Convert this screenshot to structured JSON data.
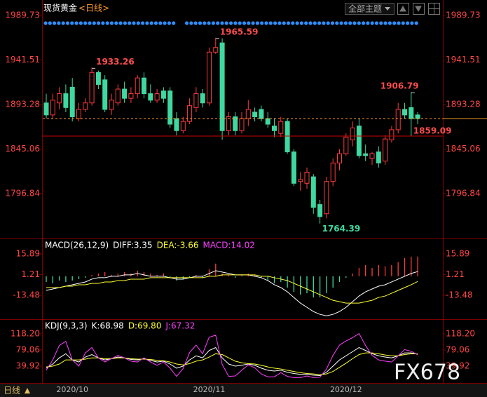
{
  "header": {
    "title": "现货黄金",
    "period": "<日线>",
    "theme_button": "全部主题",
    "bottom_period": "日线",
    "watermark": "FX678"
  },
  "chart_data": [
    {
      "type": "candlestick",
      "categories": [
        null,
        null,
        null,
        null,
        "2020/10",
        null,
        null,
        null,
        null,
        null,
        null,
        null,
        null,
        null,
        null,
        null,
        null,
        null,
        null,
        null,
        null,
        null,
        null,
        null,
        null,
        "2020/11",
        null,
        null,
        null,
        null,
        null,
        null,
        null,
        null,
        null,
        null,
        null,
        null,
        null,
        null,
        null,
        null,
        null,
        null,
        null,
        null,
        "2020/12",
        null,
        null,
        null,
        null,
        null,
        null,
        null,
        null,
        null,
        null,
        null
      ],
      "open": [
        1895,
        1882,
        1895,
        1905,
        1912,
        1878,
        1888,
        1895,
        1928,
        1920,
        1888,
        1895,
        1910,
        1900,
        1905,
        1922,
        1905,
        1898,
        1908,
        1908,
        1878,
        1865,
        1875,
        1890,
        1905,
        1895,
        1950,
        1960,
        1865,
        1880,
        1865,
        1878,
        1885,
        1888,
        1878,
        1870,
        1862,
        1875,
        1842,
        1810,
        1808,
        1815,
        1785,
        1775,
        1810,
        1830,
        1840,
        1855,
        1870,
        1840,
        1835,
        1842,
        1832,
        1855,
        1866,
        1888,
        1890,
        1882
      ],
      "high": [
        1905,
        1905,
        1912,
        1915,
        1922,
        1895,
        1900,
        1933.26,
        1930,
        1925,
        1905,
        1915,
        1918,
        1912,
        1925,
        1928,
        1915,
        1910,
        1912,
        1912,
        1885,
        1880,
        1900,
        1912,
        1910,
        1955,
        1965.59,
        1965,
        1885,
        1885,
        1885,
        1898,
        1890,
        1892,
        1885,
        1878,
        1880,
        1878,
        1845,
        1820,
        1825,
        1818,
        1790,
        1815,
        1835,
        1845,
        1862,
        1875,
        1878,
        1850,
        1842,
        1848,
        1860,
        1870,
        1895,
        1895,
        1906.79,
        1885
      ],
      "low": [
        1878,
        1878,
        1888,
        1885,
        1875,
        1875,
        1885,
        1892,
        1910,
        1885,
        1882,
        1892,
        1895,
        1895,
        1900,
        1900,
        1895,
        1895,
        1895,
        1868,
        1860,
        1862,
        1872,
        1885,
        1890,
        1892,
        1948,
        1855,
        1860,
        1860,
        1862,
        1870,
        1875,
        1875,
        1868,
        1858,
        1858,
        1840,
        1805,
        1800,
        1802,
        1775,
        1764.39,
        1770,
        1805,
        1822,
        1838,
        1848,
        1835,
        1832,
        1828,
        1825,
        1828,
        1852,
        1862,
        1878,
        1859.09,
        1872
      ],
      "close": [
        1882,
        1898,
        1905,
        1890,
        1880,
        1888,
        1895,
        1928,
        1915,
        1888,
        1898,
        1910,
        1900,
        1905,
        1922,
        1905,
        1898,
        1905,
        1900,
        1872,
        1865,
        1875,
        1892,
        1905,
        1895,
        1950,
        1955,
        1865,
        1880,
        1865,
        1878,
        1888,
        1880,
        1878,
        1872,
        1865,
        1875,
        1842,
        1808,
        1812,
        1820,
        1782,
        1772,
        1810,
        1830,
        1840,
        1858,
        1868,
        1838,
        1838,
        1840,
        1830,
        1856,
        1866,
        1888,
        1882,
        1878,
        1878
      ],
      "up_color": "#ff3b3b",
      "down_color": "#3fd8a0",
      "last_price_color": "#ff9a2e",
      "ylim": [
        1749.76,
        2002.64
      ],
      "yticks": [
        1989.73,
        1941.51,
        1893.28,
        1845.06,
        1796.84
      ],
      "high_labels": [
        {
          "value": 1965.59,
          "color": "#ff4d4d"
        },
        {
          "value": 1933.26,
          "color": "#ff4d4d"
        },
        {
          "value": 1906.79,
          "color": "#ff4d4d"
        }
      ],
      "low_labels": [
        {
          "value": 1764.39,
          "color": "#3fd8a0"
        },
        {
          "value": 1859.09,
          "color": "#ff4d4d",
          "guide": true
        }
      ]
    },
    {
      "type": "indicator",
      "title": "MACD(26,12,9)",
      "ylim": [
        -28.9,
        25.34
      ],
      "yticks": [
        15.89,
        1.21,
        -13.48
      ],
      "series": [
        {
          "name": "DIFF:3.35",
          "type": "line",
          "color": "#ffffff",
          "values": [
            -10,
            -9,
            -8,
            -7,
            -6,
            -5,
            -4,
            -2,
            -1,
            -1,
            0,
            0,
            1,
            1,
            2,
            1,
            0,
            0,
            0,
            -1,
            -2,
            -2,
            -1,
            0,
            0,
            2,
            4,
            3,
            2,
            1,
            1,
            1,
            0,
            -1,
            -3,
            -6,
            -8,
            -11,
            -15,
            -19,
            -22,
            -25,
            -27,
            -28,
            -27,
            -25,
            -22,
            -18,
            -14,
            -11,
            -9,
            -7,
            -6,
            -4,
            -2,
            0,
            2,
            3.35
          ]
        },
        {
          "name": "DEA:-3.66",
          "type": "line",
          "color": "#ffff33",
          "values": [
            -8,
            -8,
            -8,
            -7,
            -7,
            -6,
            -6,
            -5,
            -5,
            -4,
            -4,
            -3,
            -3,
            -2,
            -2,
            -2,
            -1,
            -1,
            -1,
            -1,
            -1,
            -1,
            -1,
            -1,
            -1,
            0,
            0,
            1,
            1,
            1,
            1,
            1,
            1,
            0,
            0,
            -1,
            -2,
            -3,
            -5,
            -7,
            -9,
            -11,
            -13,
            -15,
            -17,
            -18,
            -19,
            -19,
            -19,
            -18,
            -17,
            -15,
            -14,
            -12,
            -10,
            -8,
            -6,
            -3.66
          ]
        },
        {
          "name": "MACD:14.02",
          "type": "bar",
          "color": "#ff40ff",
          "up_color": "#ff3b3b",
          "down_color": "#3fd8a0",
          "values": [
            -4,
            -5,
            -3,
            -4,
            -3,
            -2,
            -1,
            1,
            2,
            3,
            1,
            2,
            3,
            2,
            4,
            3,
            2,
            1,
            2,
            -1,
            -3,
            -2,
            -1,
            1,
            -1,
            5,
            9,
            2,
            1,
            -1,
            1,
            2,
            1,
            -1,
            -3,
            -5,
            -4,
            -8,
            -11,
            -13,
            -12,
            -15,
            -15,
            -12,
            -8,
            -4,
            -1,
            2,
            6,
            8,
            6,
            8,
            7,
            8,
            10,
            13,
            14,
            14.02
          ]
        }
      ]
    },
    {
      "type": "indicator",
      "title": "KDJ(9,3,3)",
      "ylim": [
        0.78,
        148.83
      ],
      "yticks": [
        {
          "value": 118.2,
          "label": "118.20"
        },
        79.06,
        39.92
      ],
      "series": [
        {
          "name": "K:68.98",
          "type": "line",
          "color": "#ffffff",
          "values": [
            35,
            45,
            60,
            70,
            55,
            50,
            62,
            68,
            60,
            55,
            58,
            62,
            60,
            56,
            55,
            58,
            54,
            50,
            52,
            45,
            35,
            40,
            55,
            65,
            60,
            78,
            85,
            60,
            45,
            40,
            42,
            45,
            42,
            35,
            30,
            28,
            30,
            25,
            22,
            20,
            20,
            18,
            17,
            25,
            40,
            55,
            65,
            75,
            85,
            78,
            70,
            65,
            62,
            60,
            65,
            72,
            72,
            68.98
          ]
        },
        {
          "name": "D:69.80",
          "type": "line",
          "color": "#ffff33",
          "values": [
            38,
            40,
            45,
            55,
            55,
            55,
            57,
            60,
            60,
            58,
            58,
            60,
            60,
            58,
            57,
            57,
            56,
            54,
            53,
            50,
            45,
            43,
            46,
            52,
            55,
            62,
            70,
            68,
            60,
            52,
            48,
            46,
            45,
            42,
            38,
            35,
            33,
            30,
            27,
            24,
            22,
            21,
            19,
            21,
            27,
            37,
            47,
            58,
            68,
            72,
            72,
            70,
            67,
            65,
            65,
            68,
            70,
            69.8
          ]
        },
        {
          "name": "J:67.32",
          "type": "line",
          "color": "#ff40ff",
          "values": [
            30,
            55,
            90,
            100,
            55,
            40,
            72,
            85,
            60,
            50,
            58,
            66,
            60,
            52,
            50,
            60,
            50,
            42,
            50,
            35,
            15,
            34,
            73,
            91,
            70,
            110,
            115,
            44,
            15,
            16,
            30,
            43,
            36,
            21,
            14,
            14,
            24,
            15,
            12,
            12,
            16,
            12,
            13,
            33,
            66,
            91,
            101,
            109,
            119,
            90,
            66,
            55,
            52,
            50,
            65,
            80,
            76,
            67.32
          ]
        }
      ]
    }
  ]
}
